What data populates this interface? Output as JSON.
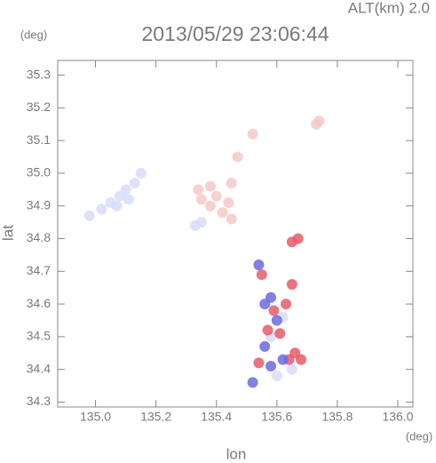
{
  "chart_data": {
    "type": "scatter",
    "title": "2013/05/29 23:06:44",
    "subtitle": "ALT(km) 2.0",
    "x_label": "lon",
    "y_label": "lat",
    "x_unit": "(deg)",
    "y_unit": "(deg)",
    "xlim": [
      134.875,
      136.05
    ],
    "ylim": [
      34.285,
      35.345
    ],
    "xticks": [
      {
        "value": 135,
        "label": "135.0"
      },
      135.2,
      135.4,
      135.6,
      135.8,
      {
        "value": 136,
        "label": "136.0"
      }
    ],
    "yticks": [
      34.3,
      34.4,
      34.5,
      34.6,
      34.7,
      34.8,
      34.9,
      {
        "value": 35,
        "label": "35.0"
      },
      35.1,
      35.2,
      35.3
    ],
    "series": [
      {
        "color": "#d8dcf8",
        "x": [
          134.98,
          135.02,
          135.05,
          135.08,
          135.1,
          135.13,
          135.15,
          135.07,
          135.11,
          135.35,
          135.33,
          135.62,
          135.58,
          135.65,
          135.6
        ],
        "values": [
          34.87,
          34.89,
          34.91,
          34.93,
          34.95,
          34.97,
          35.0,
          34.9,
          34.92,
          34.85,
          34.84,
          34.56,
          34.5,
          34.4,
          34.38
        ]
      },
      {
        "color": "#f6c8c8",
        "x": [
          135.35,
          135.38,
          135.4,
          135.42,
          135.44,
          135.38,
          135.45,
          135.47,
          135.52,
          135.45,
          135.34,
          135.73,
          135.74
        ],
        "values": [
          34.92,
          34.9,
          34.93,
          34.88,
          34.91,
          34.96,
          34.97,
          35.05,
          35.12,
          34.86,
          34.95,
          35.15,
          35.16
        ]
      },
      {
        "color": "#e85a6a",
        "x": [
          135.65,
          135.67,
          135.55,
          135.59,
          135.63,
          135.65,
          135.61,
          135.66,
          135.54,
          135.64,
          135.68,
          135.57
        ],
        "values": [
          34.79,
          34.8,
          34.69,
          34.58,
          34.6,
          34.66,
          34.51,
          34.45,
          34.42,
          34.43,
          34.43,
          34.52
        ]
      },
      {
        "color": "#6a6ae0",
        "x": [
          135.54,
          135.56,
          135.58,
          135.6,
          135.56,
          135.58,
          135.62,
          135.52
        ],
        "values": [
          34.72,
          34.6,
          34.62,
          34.55,
          34.47,
          34.41,
          34.43,
          34.36
        ]
      }
    ]
  }
}
